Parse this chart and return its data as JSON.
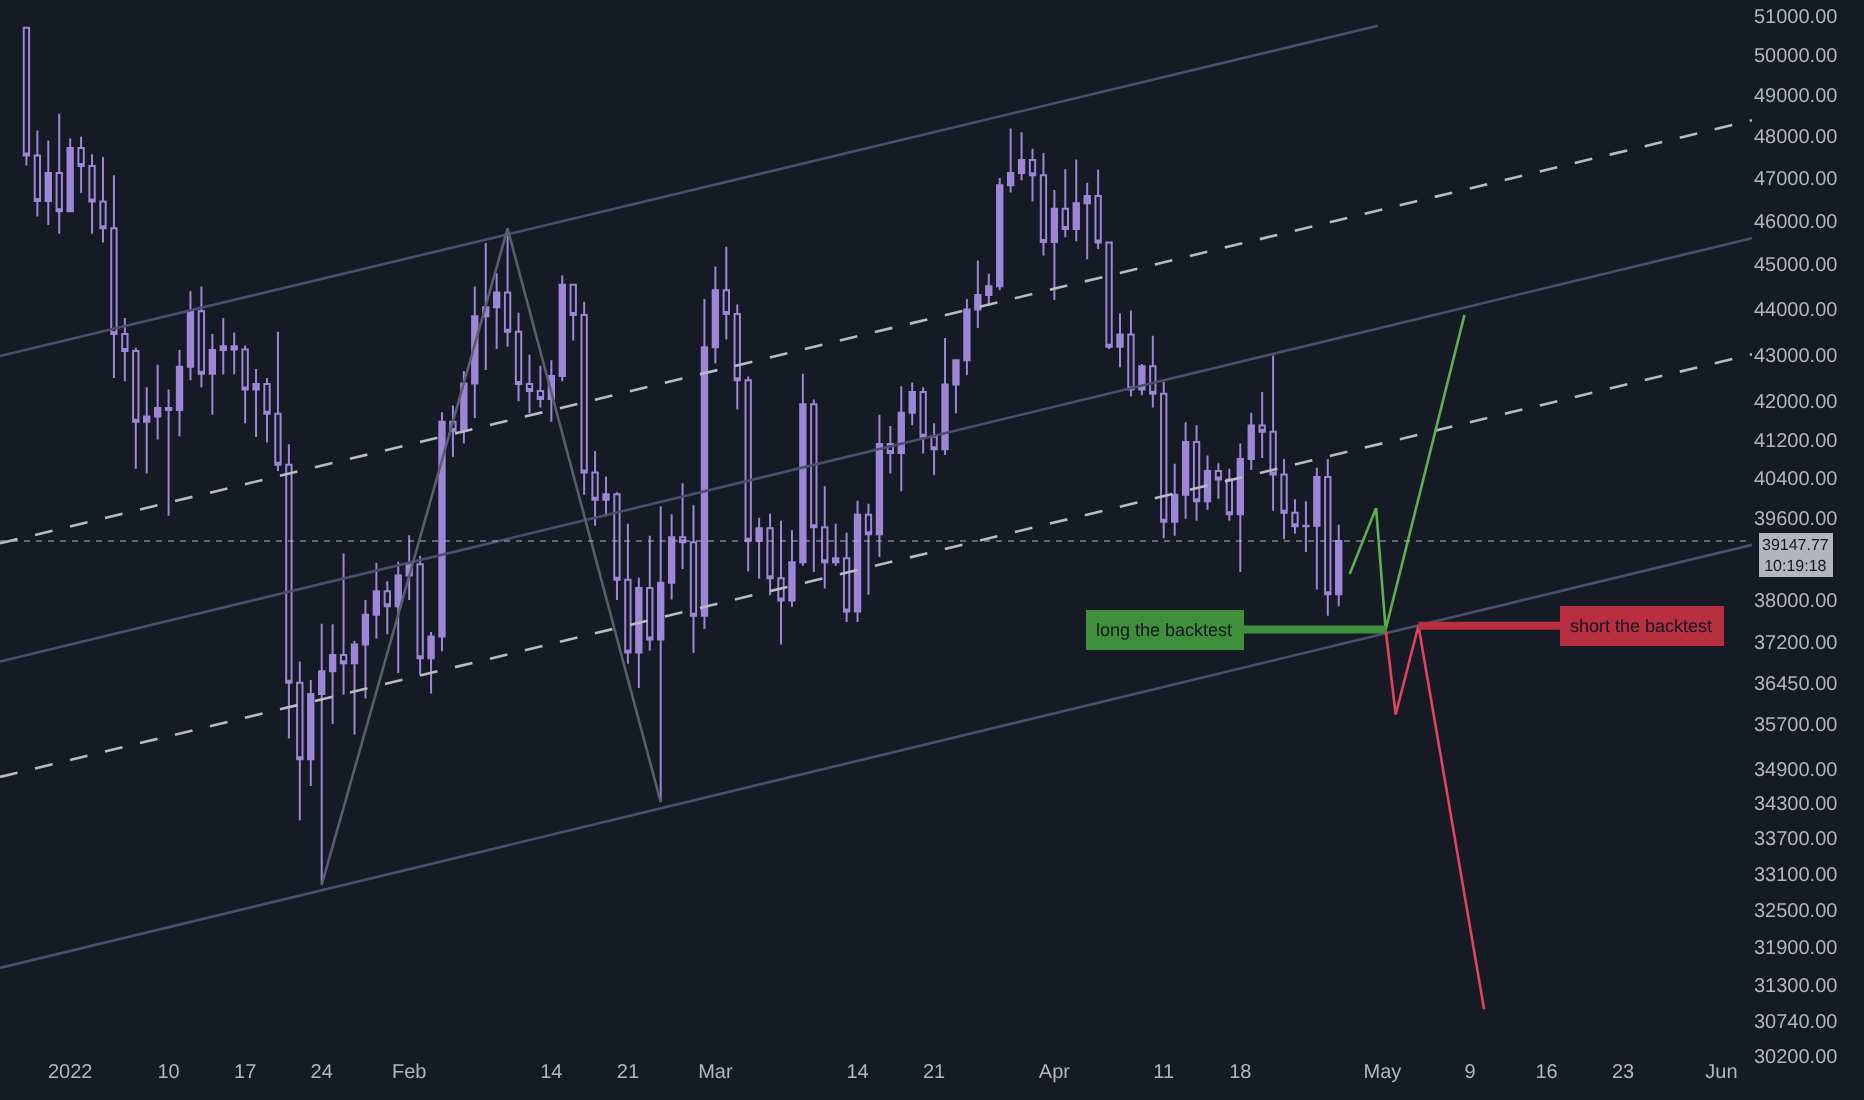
{
  "chart_data": {
    "type": "candlestick",
    "color": "#9d86d8",
    "x": [
      "2021-12-28",
      "2021-12-29",
      "2021-12-30",
      "2021-12-31",
      "2022-01-01",
      "2022-01-02",
      "2022-01-03",
      "2022-01-04",
      "2022-01-05",
      "2022-01-06",
      "2022-01-07",
      "2022-01-08",
      "2022-01-09",
      "2022-01-10",
      "2022-01-11",
      "2022-01-12",
      "2022-01-13",
      "2022-01-14",
      "2022-01-15",
      "2022-01-16",
      "2022-01-17",
      "2022-01-18",
      "2022-01-19",
      "2022-01-20",
      "2022-01-21",
      "2022-01-22",
      "2022-01-23",
      "2022-01-24",
      "2022-01-25",
      "2022-01-26",
      "2022-01-27",
      "2022-01-28",
      "2022-01-29",
      "2022-01-30",
      "2022-01-31",
      "2022-02-01",
      "2022-02-02",
      "2022-02-03",
      "2022-02-04",
      "2022-02-05",
      "2022-02-06",
      "2022-02-07",
      "2022-02-08",
      "2022-02-09",
      "2022-02-10",
      "2022-02-11",
      "2022-02-12",
      "2022-02-13",
      "2022-02-14",
      "2022-02-15",
      "2022-02-16",
      "2022-02-17",
      "2022-02-18",
      "2022-02-19",
      "2022-02-20",
      "2022-02-21",
      "2022-02-22",
      "2022-02-23",
      "2022-02-24",
      "2022-02-25",
      "2022-02-26",
      "2022-02-27",
      "2022-02-28",
      "2022-03-01",
      "2022-03-02",
      "2022-03-03",
      "2022-03-04",
      "2022-03-05",
      "2022-03-06",
      "2022-03-07",
      "2022-03-08",
      "2022-03-09",
      "2022-03-10",
      "2022-03-11",
      "2022-03-12",
      "2022-03-13",
      "2022-03-14",
      "2022-03-15",
      "2022-03-16",
      "2022-03-17",
      "2022-03-18",
      "2022-03-19",
      "2022-03-20",
      "2022-03-21",
      "2022-03-22",
      "2022-03-23",
      "2022-03-24",
      "2022-03-25",
      "2022-03-26",
      "2022-03-27",
      "2022-03-28",
      "2022-03-29",
      "2022-03-30",
      "2022-03-31",
      "2022-04-01",
      "2022-04-02",
      "2022-04-03",
      "2022-04-04",
      "2022-04-05",
      "2022-04-06",
      "2022-04-07",
      "2022-04-08",
      "2022-04-09",
      "2022-04-10",
      "2022-04-11",
      "2022-04-12",
      "2022-04-13",
      "2022-04-14",
      "2022-04-15",
      "2022-04-16",
      "2022-04-17",
      "2022-04-18",
      "2022-04-19",
      "2022-04-20",
      "2022-04-21",
      "2022-04-22",
      "2022-04-23",
      "2022-04-24",
      "2022-04-25",
      "2022-04-26",
      "2022-04-27"
    ],
    "ohlc": [
      [
        50700,
        50700,
        47300,
        47540
      ],
      [
        47540,
        48140,
        46100,
        46460
      ],
      [
        46460,
        47900,
        45900,
        47120
      ],
      [
        47120,
        48550,
        45700,
        46220
      ],
      [
        46220,
        47950,
        46200,
        47720
      ],
      [
        47720,
        47990,
        46650,
        47290
      ],
      [
        47290,
        47570,
        45700,
        46450
      ],
      [
        46450,
        47500,
        45500,
        45830
      ],
      [
        45830,
        47070,
        42500,
        43450
      ],
      [
        43450,
        43800,
        42430,
        43080
      ],
      [
        43080,
        43150,
        40600,
        41570
      ],
      [
        41570,
        42300,
        40500,
        41680
      ],
      [
        41680,
        42790,
        41200,
        41860
      ],
      [
        41860,
        42250,
        39650,
        41820
      ],
      [
        41820,
        43100,
        41270,
        42740
      ],
      [
        42740,
        44400,
        42450,
        43950
      ],
      [
        43950,
        44500,
        42300,
        42590
      ],
      [
        42590,
        43450,
        41720,
        43100
      ],
      [
        43100,
        43800,
        42570,
        43180
      ],
      [
        43180,
        43480,
        42580,
        43110
      ],
      [
        43110,
        43200,
        41540,
        42250
      ],
      [
        42250,
        42690,
        41250,
        42370
      ],
      [
        42370,
        42500,
        41140,
        41740
      ],
      [
        41740,
        43500,
        40550,
        40680
      ],
      [
        40680,
        41100,
        35440,
        36450
      ],
      [
        36450,
        36840,
        34010,
        35070
      ],
      [
        35070,
        36500,
        34600,
        36240
      ],
      [
        36240,
        37550,
        32920,
        36660
      ],
      [
        36660,
        37540,
        35700,
        36960
      ],
      [
        36960,
        38900,
        36230,
        36810
      ],
      [
        36810,
        37230,
        35510,
        37160
      ],
      [
        37160,
        38000,
        36160,
        37720
      ],
      [
        37720,
        38720,
        37270,
        38170
      ],
      [
        38170,
        38360,
        37350,
        37880
      ],
      [
        37880,
        38740,
        36630,
        38470
      ],
      [
        38470,
        39260,
        38000,
        38690
      ],
      [
        38690,
        38850,
        36590,
        36900
      ],
      [
        36900,
        37390,
        36250,
        37310
      ],
      [
        37310,
        41770,
        37030,
        41570
      ],
      [
        41570,
        41910,
        40840,
        41380
      ],
      [
        41380,
        42650,
        41120,
        42380
      ],
      [
        42380,
        44500,
        41650,
        43840
      ],
      [
        43840,
        45490,
        42670,
        44040
      ],
      [
        44040,
        44800,
        43120,
        44370
      ],
      [
        44370,
        45820,
        43170,
        43500
      ],
      [
        43500,
        43920,
        42000,
        42370
      ],
      [
        42370,
        43000,
        41750,
        42220
      ],
      [
        42220,
        42760,
        41870,
        42050
      ],
      [
        42050,
        42880,
        41570,
        42540
      ],
      [
        42540,
        44750,
        42430,
        44540
      ],
      [
        44540,
        44550,
        43310,
        43870
      ],
      [
        43870,
        44160,
        40070,
        40520
      ],
      [
        40520,
        40960,
        39450,
        39970
      ],
      [
        39970,
        40440,
        39640,
        40080
      ],
      [
        40080,
        40120,
        38000,
        38390
      ],
      [
        38390,
        39490,
        36800,
        37010
      ],
      [
        37010,
        38430,
        36350,
        38230
      ],
      [
        38230,
        39250,
        37040,
        37250
      ],
      [
        37250,
        39840,
        34320,
        38330
      ],
      [
        38330,
        39680,
        38010,
        39220
      ],
      [
        39220,
        40300,
        38600,
        39120
      ],
      [
        39120,
        39860,
        37000,
        37700
      ],
      [
        37700,
        44220,
        37450,
        43160
      ],
      [
        43160,
        44950,
        42810,
        44420
      ],
      [
        44420,
        45400,
        43330,
        43890
      ],
      [
        43890,
        44100,
        41830,
        42450
      ],
      [
        42450,
        42530,
        38550,
        39150
      ],
      [
        39150,
        39610,
        38410,
        39400
      ],
      [
        39400,
        39690,
        38090,
        38420
      ],
      [
        38420,
        39550,
        37160,
        37990
      ],
      [
        37990,
        39360,
        37870,
        38730
      ],
      [
        38730,
        42590,
        38660,
        41940
      ],
      [
        41940,
        42040,
        38540,
        39420
      ],
      [
        39420,
        40240,
        38220,
        38730
      ],
      [
        38730,
        39490,
        38660,
        38810
      ],
      [
        38810,
        39310,
        37580,
        37780
      ],
      [
        37780,
        39950,
        37580,
        39670
      ],
      [
        39670,
        39890,
        38100,
        39280
      ],
      [
        39280,
        41720,
        38830,
        41110
      ],
      [
        41110,
        41480,
        40500,
        40920
      ],
      [
        40920,
        42320,
        40140,
        41760
      ],
      [
        41760,
        42400,
        41500,
        42200
      ],
      [
        42200,
        42300,
        40910,
        41260
      ],
      [
        41260,
        41540,
        40470,
        41000
      ],
      [
        41000,
        43360,
        40880,
        42360
      ],
      [
        42360,
        42890,
        41750,
        42880
      ],
      [
        42880,
        44220,
        42560,
        43990
      ],
      [
        43990,
        45090,
        43580,
        44310
      ],
      [
        44310,
        44790,
        44070,
        44510
      ],
      [
        44510,
        47000,
        44420,
        46830
      ],
      [
        46830,
        48190,
        46660,
        47120
      ],
      [
        47120,
        48100,
        46950,
        47430
      ],
      [
        47430,
        47700,
        46450,
        47070
      ],
      [
        47070,
        47600,
        45200,
        45510
      ],
      [
        45510,
        46720,
        44200,
        46280
      ],
      [
        46280,
        47210,
        45620,
        45810
      ],
      [
        45810,
        47440,
        45530,
        46410
      ],
      [
        46410,
        46890,
        45120,
        46580
      ],
      [
        46580,
        47200,
        45350,
        45500
      ],
      [
        45500,
        45510,
        43120,
        43170
      ],
      [
        43170,
        43900,
        42730,
        43440
      ],
      [
        43440,
        43970,
        42110,
        42250
      ],
      [
        42250,
        42800,
        42130,
        42750
      ],
      [
        42750,
        43410,
        41870,
        42160
      ],
      [
        42160,
        42410,
        39200,
        39530
      ],
      [
        39530,
        40700,
        39250,
        40070
      ],
      [
        40070,
        41560,
        39590,
        41150
      ],
      [
        41150,
        41500,
        39550,
        39940
      ],
      [
        39940,
        40870,
        39770,
        40550
      ],
      [
        40550,
        40710,
        39990,
        40380
      ],
      [
        40380,
        40600,
        39550,
        39680
      ],
      [
        39680,
        41120,
        38540,
        40800
      ],
      [
        40800,
        41760,
        40570,
        41490
      ],
      [
        41490,
        42200,
        40820,
        41360
      ],
      [
        41360,
        42980,
        39750,
        40480
      ],
      [
        40480,
        40800,
        39180,
        39710
      ],
      [
        39710,
        39980,
        39290,
        39440
      ],
      [
        39440,
        39940,
        38930,
        39450
      ],
      [
        39450,
        40620,
        38200,
        40430
      ],
      [
        40430,
        40800,
        37700,
        38110
      ],
      [
        38110,
        39470,
        37880,
        39147.77
      ]
    ],
    "series": [
      {
        "type": "line",
        "x": [
          "2021-12-25T14:00",
          "2022-04-30T14:00"
        ],
        "values": [
          42970,
          50750
        ],
        "color": "#4b4f6e",
        "line_style": "solid"
      },
      {
        "type": "line",
        "x": [
          "2021-12-25T14:00",
          "2022-06-03T19:00"
        ],
        "values": [
          39100,
          48390
        ],
        "color": "#b8bac4",
        "line_style": "dashed"
      },
      {
        "type": "line",
        "x": [
          "2021-12-25T14:00",
          "2022-06-03T19:00"
        ],
        "values": [
          36840,
          45600
        ],
        "color": "#4b4f6e",
        "line_style": "solid"
      },
      {
        "type": "line",
        "x": [
          "2021-12-25T14:00",
          "2022-06-03T19:00"
        ],
        "values": [
          34760,
          43010
        ],
        "color": "#b8bac4",
        "line_style": "dashed"
      },
      {
        "type": "line",
        "x": [
          "2021-12-25T14:00",
          "2022-06-03T19:00"
        ],
        "values": [
          31570,
          39070
        ],
        "color": "#4b4f6e",
        "line_style": "solid"
      },
      {
        "type": "line",
        "x": [
          "2022-01-24",
          "2022-02-10",
          "2022-02-24"
        ],
        "values": [
          32920,
          45820,
          34320
        ],
        "color": "#5a5d6e",
        "line_style": "solid"
      },
      {
        "type": "line",
        "x": [
          "2022-04-28T00:00",
          "2022-04-30T10:00",
          "2022-05-01T07:00",
          "2022-05-08T12:00"
        ],
        "values": [
          38500,
          39800,
          37440,
          43870
        ],
        "color": "#5cb04e",
        "line_style": "solid"
      },
      {
        "type": "line",
        "x": [
          "2022-05-01T07:00",
          "2022-05-02T05:00",
          "2022-05-04T07:00",
          "2022-05-10T07:00"
        ],
        "values": [
          37440,
          35870,
          37510,
          30920
        ],
        "color": "#e2425c",
        "line_style": "solid"
      }
    ],
    "xlim": [
      "2021-12-25T14:00",
      "2022-06-03T19:00"
    ],
    "xticks": [
      {
        "value": "2022-01-01",
        "label": "2022"
      },
      {
        "value": "2022-01-10",
        "label": "10"
      },
      {
        "value": "2022-01-17",
        "label": "17"
      },
      {
        "value": "2022-01-24",
        "label": "24"
      },
      {
        "value": "2022-02-01",
        "label": "Feb"
      },
      {
        "value": "2022-02-14",
        "label": "14"
      },
      {
        "value": "2022-02-21",
        "label": "21"
      },
      {
        "value": "2022-03-01",
        "label": "Mar"
      },
      {
        "value": "2022-03-14",
        "label": "14"
      },
      {
        "value": "2022-03-21",
        "label": "21"
      },
      {
        "value": "2022-04-01",
        "label": "Apr"
      },
      {
        "value": "2022-04-11",
        "label": "11"
      },
      {
        "value": "2022-04-18",
        "label": "18"
      },
      {
        "value": "2022-05-01",
        "label": "May"
      },
      {
        "value": "2022-05-09",
        "label": "9"
      },
      {
        "value": "2022-05-16",
        "label": "16"
      },
      {
        "value": "2022-05-23",
        "label": "23"
      },
      {
        "value": "2022-06-01",
        "label": "Jun"
      }
    ],
    "ylim": [
      30200,
      51000
    ],
    "log": true,
    "yticks": [
      {
        "value": 51000,
        "label": "51000.00"
      },
      {
        "value": 50000,
        "label": "50000.00"
      },
      {
        "value": 49000,
        "label": "49000.00"
      },
      {
        "value": 48000,
        "label": "48000.00"
      },
      {
        "value": 47000,
        "label": "47000.00"
      },
      {
        "value": 46000,
        "label": "46000.00"
      },
      {
        "value": 45000,
        "label": "45000.00"
      },
      {
        "value": 44000,
        "label": "44000.00"
      },
      {
        "value": 43000,
        "label": "43000.00"
      },
      {
        "value": 42000,
        "label": "42000.00"
      },
      {
        "value": 41200,
        "label": "41200.00"
      },
      {
        "value": 40400,
        "label": "40400.00"
      },
      {
        "value": 39600,
        "label": "39600.00"
      },
      {
        "value": 38000,
        "label": "38000.00"
      },
      {
        "value": 37200,
        "label": "37200.00"
      },
      {
        "value": 36450,
        "label": "36450.00"
      },
      {
        "value": 35700,
        "label": "35700.00"
      },
      {
        "value": 34900,
        "label": "34900.00"
      },
      {
        "value": 34300,
        "label": "34300.00"
      },
      {
        "value": 33700,
        "label": "33700.00"
      },
      {
        "value": 33100,
        "label": "33100.00"
      },
      {
        "value": 32500,
        "label": "32500.00"
      },
      {
        "value": 31900,
        "label": "31900.00"
      },
      {
        "value": 31300,
        "label": "31300.00"
      },
      {
        "value": 30740,
        "label": "30740.00"
      },
      {
        "value": 30200,
        "label": "30200.00"
      }
    ],
    "ref_lines": [
      {
        "axis": "y",
        "value": 39147.77,
        "label": "39147.77\n10:19:18",
        "color": "#b2b5be",
        "line_style": "dotted"
      }
    ],
    "annotations": [
      {
        "text": "long the backtest",
        "x": "2022-05-01T07:00",
        "y": 37440
      },
      {
        "text": "short the backtest",
        "x": "2022-05-04T07:00",
        "y": 37510
      }
    ],
    "grid": false,
    "marker": "none"
  }
}
